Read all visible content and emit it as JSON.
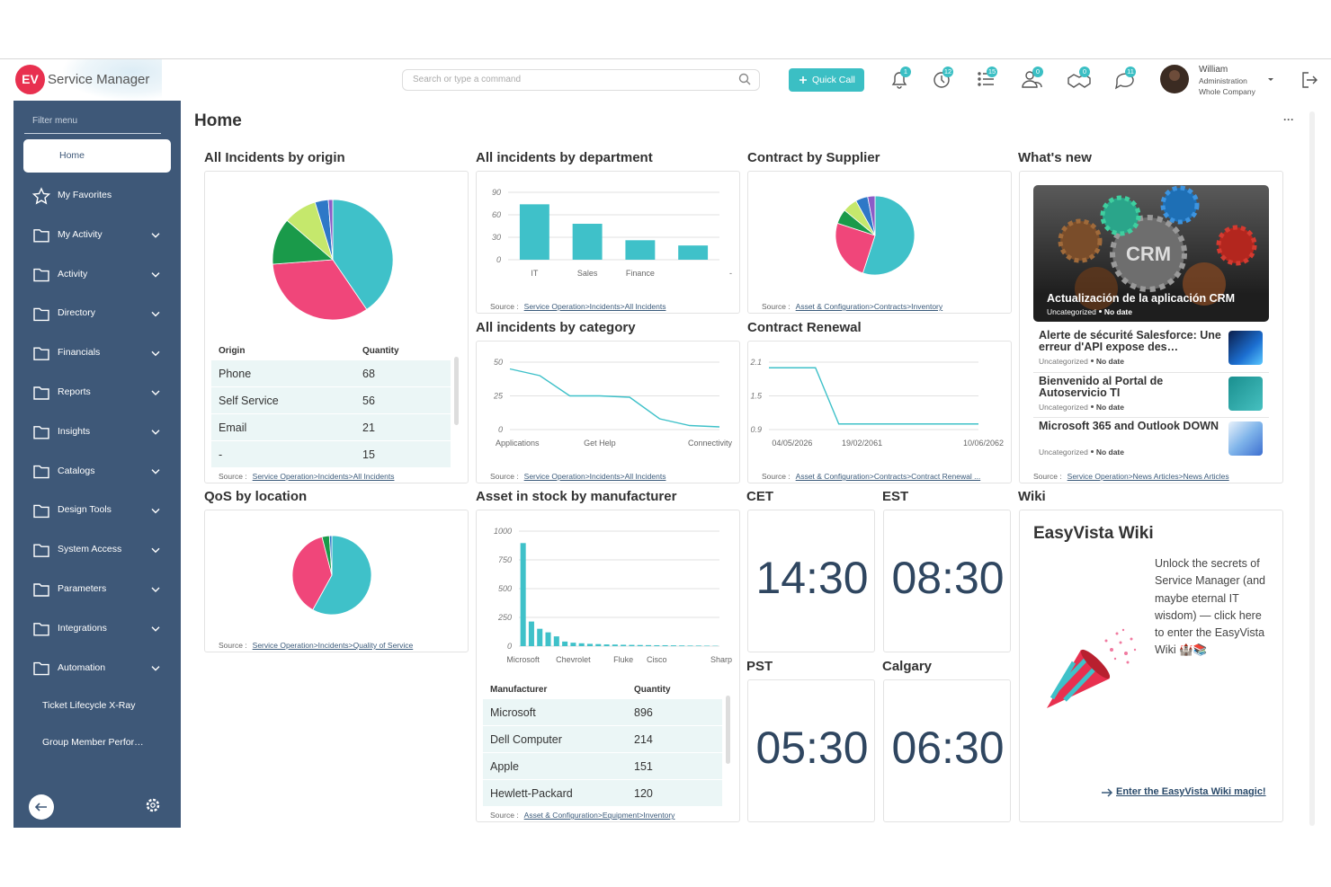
{
  "header": {
    "logo": "EV",
    "app_name": "Service Manager",
    "search_placeholder": "Search or type a command",
    "quick_call": "Quick Call",
    "badges": [
      1,
      12,
      15,
      0,
      0,
      11
    ],
    "user": {
      "name": "William",
      "role": "Administration",
      "scope": "Whole Company"
    }
  },
  "sidebar": {
    "filter_placeholder": "Filter menu",
    "items": [
      "Home",
      "My Favorites",
      "My Activity",
      "Activity",
      "Directory",
      "Financials",
      "Reports",
      "Insights",
      "Catalogs",
      "Design Tools",
      "System Access",
      "Parameters",
      "Integrations",
      "Automation"
    ],
    "links": [
      "Ticket Lifecycle X-Ray",
      "Group Member Perfor…"
    ]
  },
  "page": {
    "title": "Home",
    "menu": "···"
  },
  "chart_data": [
    {
      "type": "pie",
      "title": "All Incidents by origin",
      "categories": [
        "Phone",
        "Self Service",
        "Email",
        "-",
        null,
        null
      ],
      "values": [
        68,
        56,
        21,
        15,
        6,
        2
      ],
      "colors": [
        "#3fc1c9",
        "#f0467a",
        "#1a9a4a",
        "#c5e86c",
        "#2e78c7",
        "#8b5cc7"
      ],
      "table_headers": [
        "Origin",
        "Quantity"
      ],
      "source_label": "Source :",
      "source": "Service Operation>Incidents>All Incidents"
    },
    {
      "type": "bar",
      "title": "All incidents by department",
      "categories": [
        "IT",
        "Sales",
        "Finance",
        "-"
      ],
      "values": [
        74,
        48,
        26,
        19
      ],
      "color": "#3fc1c9",
      "ylim": [
        0,
        90
      ],
      "yticks": [
        0,
        30,
        60,
        90
      ],
      "grid": true,
      "source_label": "Source :",
      "source": "Service Operation>Incidents>All Incidents"
    },
    {
      "type": "pie",
      "title": "Contract by Supplier",
      "categories": [
        null,
        null,
        null,
        null,
        null,
        null
      ],
      "values": [
        55,
        25,
        6,
        6,
        5,
        3
      ],
      "colors": [
        "#3fc1c9",
        "#f0467a",
        "#1a9a4a",
        "#c5e86c",
        "#2e78c7",
        "#8b5cc7"
      ],
      "source_label": "Source :",
      "source": "Asset & Configuration>Contracts>Inventory"
    },
    {
      "type": "line",
      "title": "All incidents by category",
      "categories": [
        "Applications",
        null,
        null,
        "Get Help",
        null,
        null,
        null,
        "Connectivity"
      ],
      "values": [
        45,
        40,
        25,
        25,
        24,
        8,
        3,
        2
      ],
      "color": "#3fc1c9",
      "ylim": [
        0,
        50
      ],
      "yticks": [
        0,
        25,
        50
      ],
      "grid": true,
      "source_label": "Source :",
      "source": "Service Operation>Incidents>All Incidents"
    },
    {
      "type": "line",
      "title": "Contract Renewal",
      "categories": [
        null,
        "04/05/2026",
        null,
        null,
        "19/02/2061",
        null,
        null,
        null,
        null,
        "10/06/2062"
      ],
      "values": [
        2.0,
        2.0,
        2.0,
        1.0,
        1.0,
        1.0,
        1.0,
        1.0,
        1.0,
        1.0
      ],
      "color": "#3fc1c9",
      "ylim": [
        0.9,
        2.1
      ],
      "yticks": [
        0.9,
        1.5,
        2.1
      ],
      "grid": true,
      "source_label": "Source :",
      "source": "Asset & Configuration>Contracts>Contract Renewal ..."
    },
    {
      "type": "pie",
      "title": "QoS by location",
      "categories": [
        null,
        null,
        null,
        null
      ],
      "values": [
        58,
        38,
        3,
        1
      ],
      "colors": [
        "#3fc1c9",
        "#f0467a",
        "#1a9a4a",
        "#2e78c7"
      ],
      "source_label": "Source :",
      "source": "Service Operation>Incidents>Quality of Service"
    },
    {
      "type": "bar",
      "title": "Asset in stock by manufacturer",
      "categories": [
        "Microsoft",
        "Dell Computer",
        "Apple",
        "Hewlett-Packard",
        null,
        null,
        "Chevrolet",
        null,
        null,
        null,
        null,
        null,
        "Fluke",
        null,
        null,
        null,
        "Cisco",
        null,
        null,
        null,
        null,
        null,
        null,
        "Sharp"
      ],
      "values": [
        896,
        214,
        151,
        120,
        85,
        40,
        30,
        25,
        20,
        18,
        15,
        14,
        12,
        11,
        10,
        9,
        8,
        8,
        7,
        6,
        5,
        5,
        4,
        3
      ],
      "color": "#3fc1c9",
      "ylim": [
        0,
        1000
      ],
      "yticks": [
        0,
        250,
        500,
        750,
        1000
      ],
      "grid": true,
      "table_headers": [
        "Manufacturer",
        "Quantity"
      ],
      "source_label": "Source :",
      "source": "Asset & Configuration>Equipment>Inventory"
    }
  ],
  "news": {
    "title": "What's new",
    "featured": {
      "image_text": "CRM",
      "title": "Actualización de la aplicación CRM",
      "category": "Uncategorized",
      "date": "No date"
    },
    "items": [
      {
        "title": "Alerte de sécurité Salesforce: Une erreur d'API expose des…",
        "category": "Uncategorized",
        "date": "No date"
      },
      {
        "title": "Bienvenido al Portal de Autoservicio TI",
        "category": "Uncategorized",
        "date": "No date"
      },
      {
        "title": "Microsoft 365 and Outlook DOWN",
        "category": "Uncategorized",
        "date": "No date"
      }
    ],
    "source_label": "Source :",
    "source": "Service Operation>News Articles>News Articles"
  },
  "clocks": [
    {
      "zone": "CET",
      "time": "14:30"
    },
    {
      "zone": "EST",
      "time": "08:30"
    },
    {
      "zone": "PST",
      "time": "05:30"
    },
    {
      "zone": "Calgary",
      "time": "06:30"
    }
  ],
  "wiki": {
    "section": "Wiki",
    "title": "EasyVista Wiki",
    "text": "Unlock the secrets of Service Manager (and maybe eternal IT wisdom) — click here to enter the EasyVista Wiki 🏰📚",
    "link": "Enter the EasyVista Wiki magic!"
  }
}
